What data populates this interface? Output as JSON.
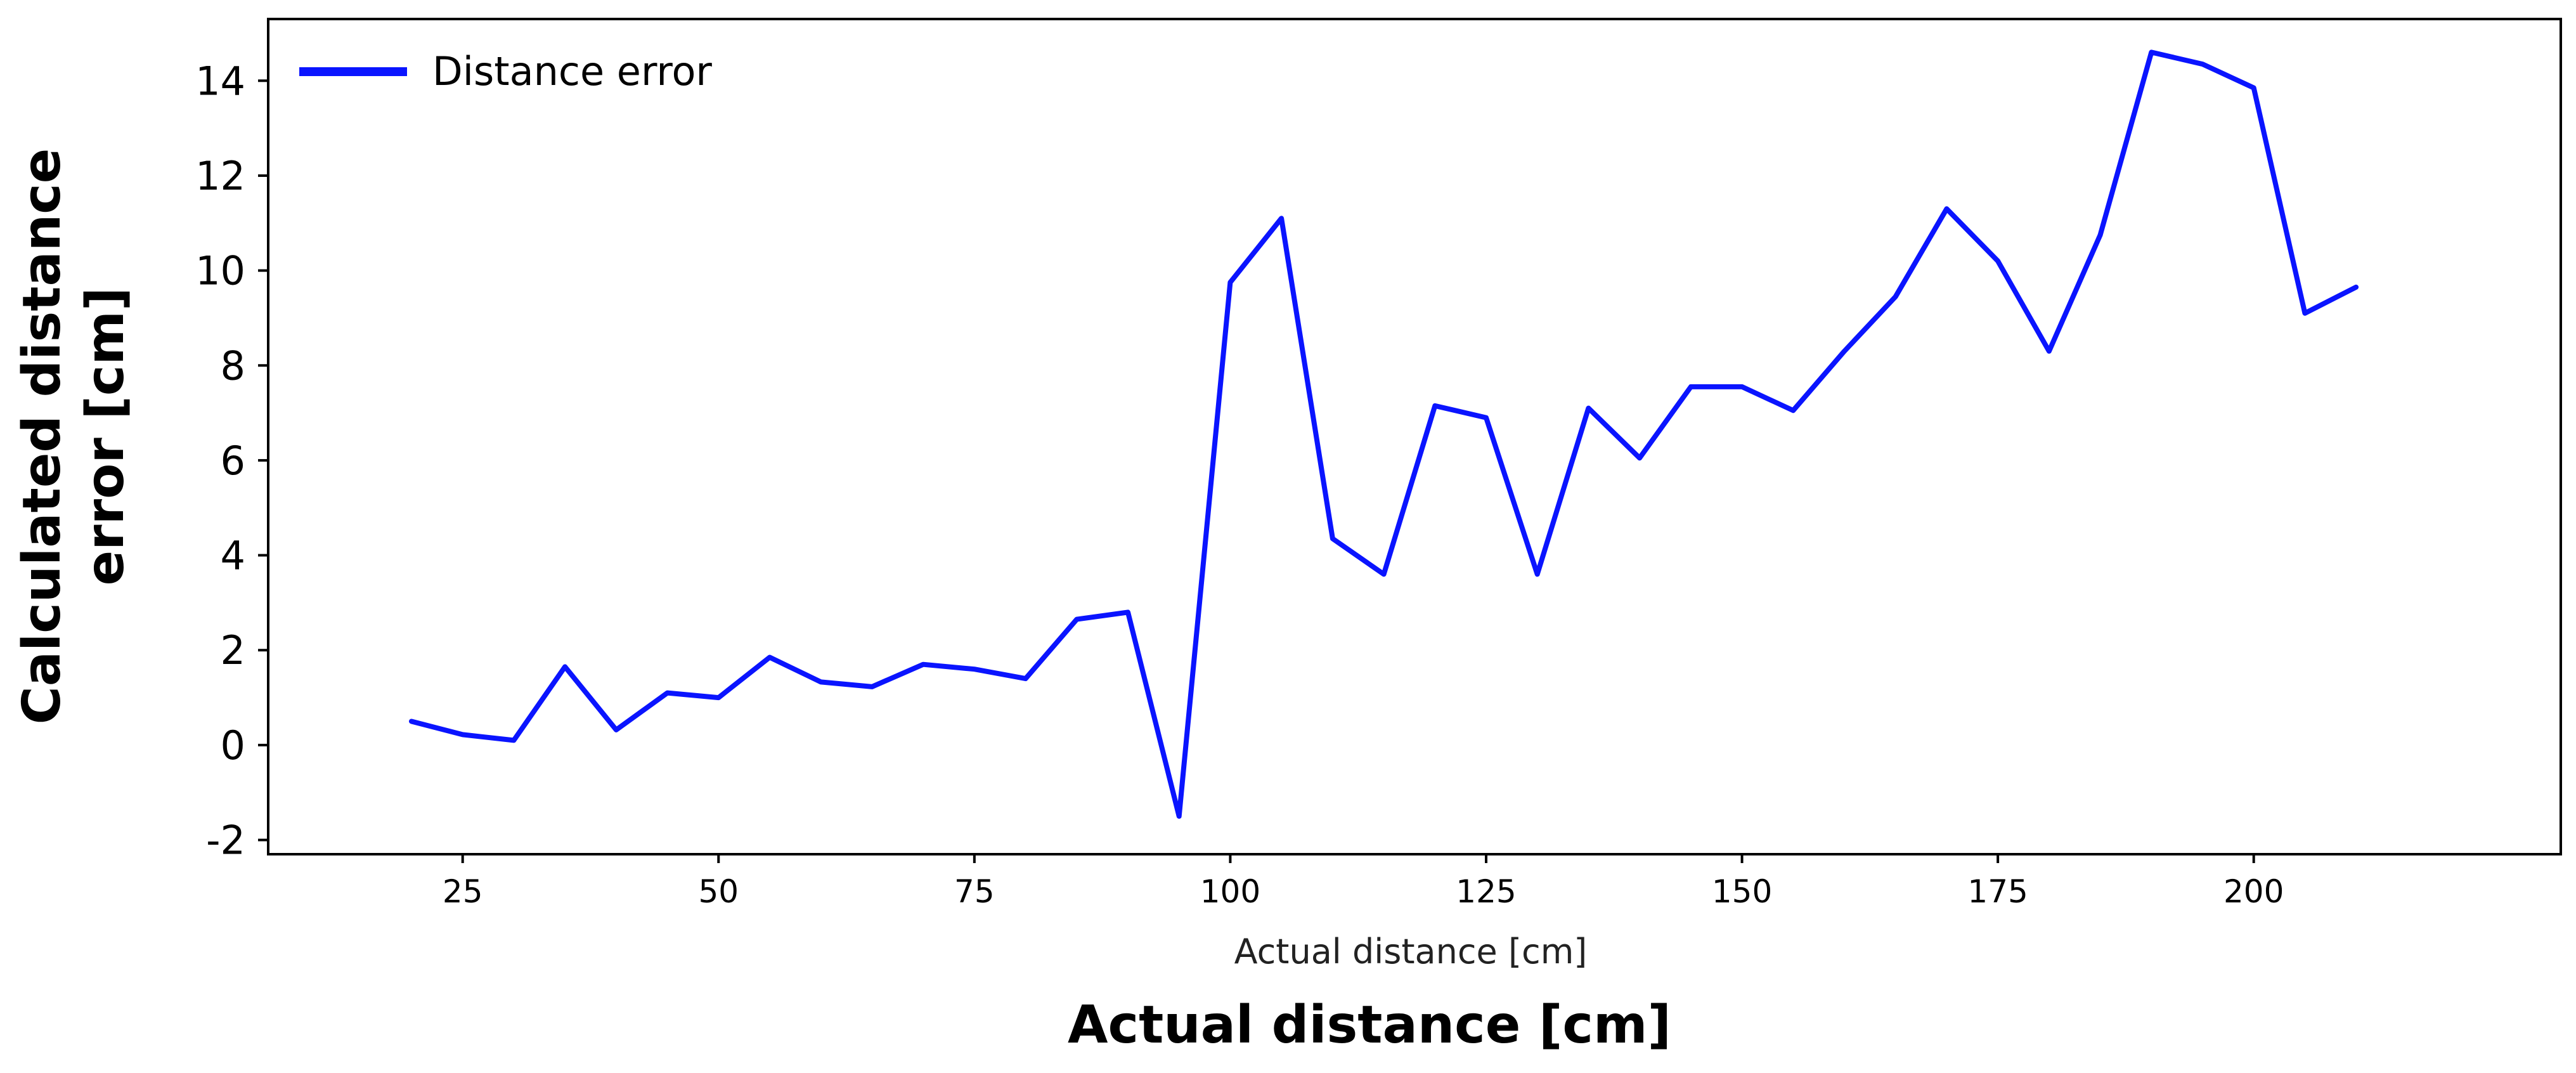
{
  "chart_data": {
    "type": "line",
    "xlabel": "Actual distance [cm]",
    "outer_xlabel": "Actual distance [cm]",
    "ylabel_lines": [
      "Calculated distance",
      "error [cm]"
    ],
    "x_ticks": [
      25,
      50,
      75,
      100,
      125,
      150,
      175,
      200
    ],
    "y_ticks": [
      -2,
      0,
      2,
      4,
      6,
      8,
      10,
      12,
      14
    ],
    "y_tick_labels": [
      "-2",
      "0",
      "2",
      "4",
      "6",
      "8",
      "10",
      "12",
      "14"
    ],
    "xlim": [
      6,
      230
    ],
    "ylim": [
      -2.3,
      15.3
    ],
    "legend_position": "top-left",
    "grid": false,
    "series": [
      {
        "name": "Distance error",
        "color": "#0a14ff",
        "x": [
          20,
          25,
          30,
          35,
          40,
          45,
          50,
          55,
          60,
          65,
          70,
          75,
          80,
          85,
          90,
          95,
          100,
          105,
          110,
          115,
          120,
          125,
          130,
          135,
          140,
          145,
          150,
          155,
          160,
          165,
          170,
          175,
          180,
          185,
          190,
          195,
          200,
          205,
          210
        ],
        "y": [
          0.5,
          0.22,
          0.1,
          1.65,
          0.32,
          1.1,
          1.0,
          1.85,
          1.33,
          1.23,
          1.7,
          1.6,
          1.4,
          2.65,
          2.8,
          -1.5,
          9.75,
          11.1,
          4.35,
          3.6,
          7.15,
          6.9,
          3.6,
          7.1,
          6.05,
          7.55,
          7.55,
          7.05,
          8.3,
          9.45,
          11.3,
          10.2,
          8.3,
          10.75,
          14.6,
          14.35,
          13.85,
          9.1,
          9.65
        ]
      }
    ]
  }
}
